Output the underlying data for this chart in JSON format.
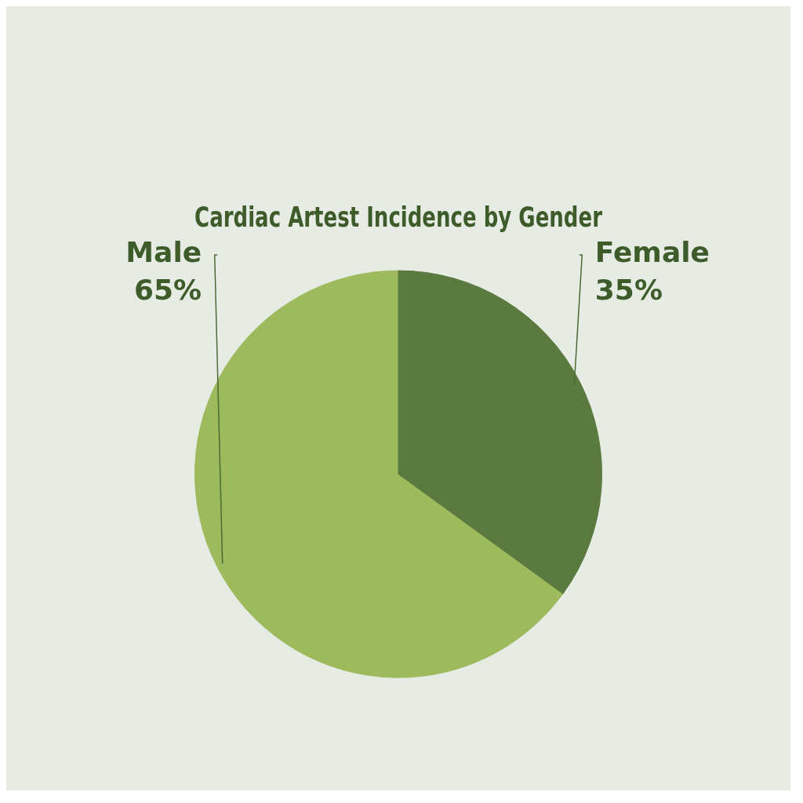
{
  "chart_data": {
    "type": "pie",
    "title": "Cardiac Artest Incidence by Gender",
    "categories": [
      "Male",
      "Female"
    ],
    "values": [
      65,
      35
    ],
    "colors": [
      "#9dbb5c",
      "#5a7a40"
    ],
    "value_labels": [
      "65%",
      "35%"
    ],
    "legend": false
  }
}
